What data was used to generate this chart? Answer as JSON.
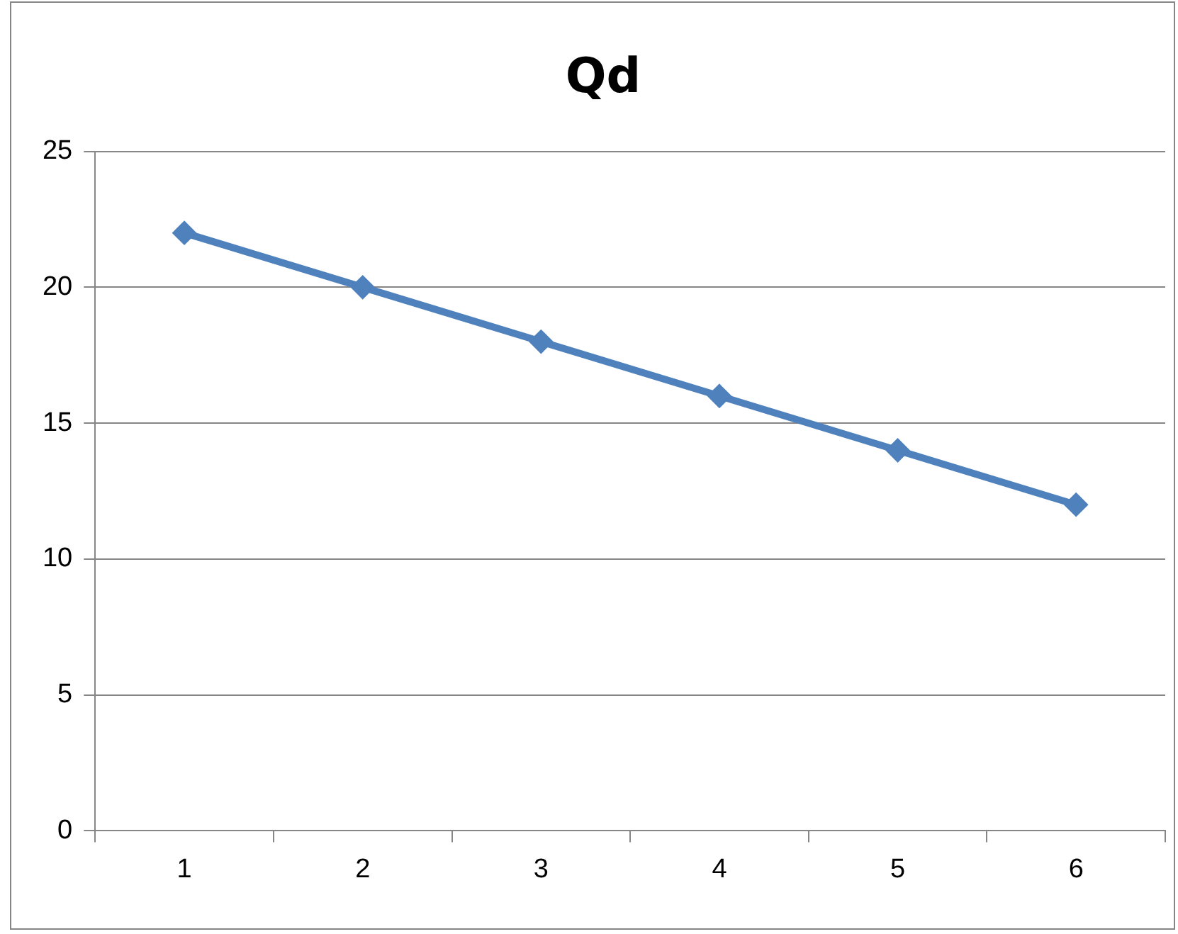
{
  "chart_data": {
    "type": "line",
    "title": "Qd",
    "categories": [
      "1",
      "2",
      "3",
      "4",
      "5",
      "6"
    ],
    "series": [
      {
        "color": "#4f81bd",
        "values": [
          22,
          20,
          18,
          16,
          14,
          12
        ]
      }
    ],
    "ylim": [
      0,
      25
    ],
    "yticks": [
      0,
      5,
      10,
      15,
      20,
      25
    ],
    "grid": "y",
    "legend": false,
    "marker": "diamond",
    "line_style": "solid"
  }
}
